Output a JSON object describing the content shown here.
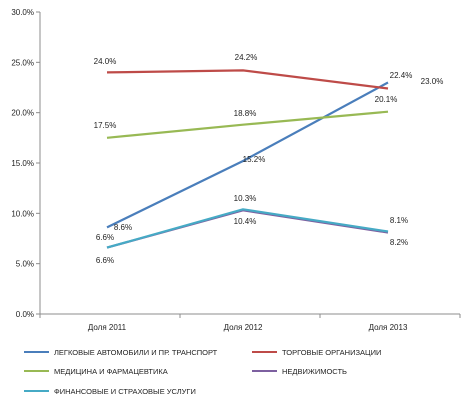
{
  "chart_data": {
    "type": "line",
    "title": "",
    "xlabel": "",
    "ylabel": "",
    "categories": [
      "Доля 2011",
      "Доля 2012",
      "Доля 2013"
    ],
    "ylim": [
      0,
      30
    ],
    "yticks": [
      "0.0%",
      "5.0%",
      "10.0%",
      "15.0%",
      "20.0%",
      "25.0%",
      "30.0%"
    ],
    "grid": false,
    "legend_position": "bottom",
    "series": [
      {
        "name": "ЛЕГКОВЫЕ АВТОМОБИЛИ И ПР. ТРАНСПОРТ",
        "color": "#4a7ebb",
        "values": [
          8.6,
          15.2,
          23.0
        ],
        "labels": [
          "8.6%",
          "15.2%",
          "23.0%"
        ]
      },
      {
        "name": "ТОРГОВЫЕ ОРГАНИЗАЦИИ",
        "color": "#be4b48",
        "values": [
          24.0,
          24.2,
          22.4
        ],
        "labels": [
          "24.0%",
          "24.2%",
          "22.4%"
        ]
      },
      {
        "name": "МЕДИЦИНА И ФАРМАЦЕВТИКА",
        "color": "#98b954",
        "values": [
          17.5,
          18.8,
          20.1
        ],
        "labels": [
          "17.5%",
          "18.8%",
          "20.1%"
        ]
      },
      {
        "name": "НЕДВИЖИМОСТЬ",
        "color": "#7d60a0",
        "values": [
          6.6,
          10.3,
          8.1
        ],
        "labels": [
          "6.6%",
          "10.3%",
          "8.1%"
        ]
      },
      {
        "name": "ФИНАНСОВЫЕ И СТРАХОВЫЕ УСЛУГИ",
        "color": "#46aac5",
        "values": [
          6.6,
          10.4,
          8.2
        ],
        "labels": [
          "6.6%",
          "10.4%",
          "8.2%"
        ]
      }
    ]
  }
}
